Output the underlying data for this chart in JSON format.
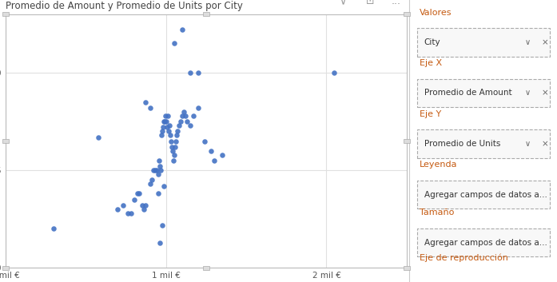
{
  "title": "Promedio de Amount y Promedio de Units por City",
  "xlabel": "Promedio de Amount",
  "ylabel": "Promedio de Units",
  "xlim": [
    0,
    2500
  ],
  "ylim": [
    1.0,
    2.3
  ],
  "scatter_color": "#4472C4",
  "scatter_alpha": 0.9,
  "scatter_size": 22,
  "plot_bg": "#FFFFFF",
  "fig_bg": "#FFFFFF",
  "grid_color": "#E0E0E0",
  "scatter_x": [
    300,
    580,
    700,
    730,
    760,
    780,
    800,
    820,
    830,
    850,
    860,
    870,
    900,
    910,
    920,
    930,
    940,
    950,
    955,
    960,
    965,
    970,
    975,
    980,
    985,
    990,
    995,
    1000,
    1005,
    1010,
    1015,
    1020,
    1025,
    1030,
    1035,
    1040,
    1045,
    1050,
    1055,
    1060,
    1065,
    1070,
    1080,
    1090,
    1100,
    1110,
    1120,
    1130,
    1150,
    1170,
    1200,
    1240,
    1280,
    1300,
    1350,
    870,
    900,
    950,
    960,
    975,
    985,
    1050,
    1100,
    1150,
    1200,
    2050
  ],
  "scatter_y": [
    1.2,
    1.67,
    1.3,
    1.32,
    1.28,
    1.28,
    1.35,
    1.38,
    1.38,
    1.32,
    1.3,
    1.32,
    1.43,
    1.45,
    1.5,
    1.5,
    1.5,
    1.48,
    1.55,
    1.52,
    1.5,
    1.68,
    1.7,
    1.72,
    1.75,
    1.75,
    1.78,
    1.75,
    1.72,
    1.78,
    1.7,
    1.73,
    1.68,
    1.65,
    1.62,
    1.6,
    1.55,
    1.58,
    1.62,
    1.65,
    1.68,
    1.7,
    1.73,
    1.75,
    1.78,
    1.8,
    1.78,
    1.75,
    1.73,
    1.78,
    1.82,
    1.65,
    1.6,
    1.55,
    1.58,
    1.85,
    1.82,
    1.38,
    1.13,
    1.22,
    1.42,
    2.15,
    2.22,
    2.0,
    2.0,
    2.0
  ],
  "right_bg": "#F2F2F2",
  "label_color": "#C55A11",
  "field_bg": "#FAFAFA",
  "field_border": "#AAAAAA",
  "section_labels": [
    "Valores",
    "Eje X",
    "Eje Y",
    "Leyenda",
    "Tamaño"
  ],
  "field_values": [
    "City",
    "Promedio de Amount",
    "Promedio de Units",
    "Agregar campos de datos a...",
    "Agregar campos de datos a..."
  ],
  "has_chevron_x": [
    true,
    true,
    true,
    false,
    false
  ],
  "bottom_label": "Eje de reproducción"
}
